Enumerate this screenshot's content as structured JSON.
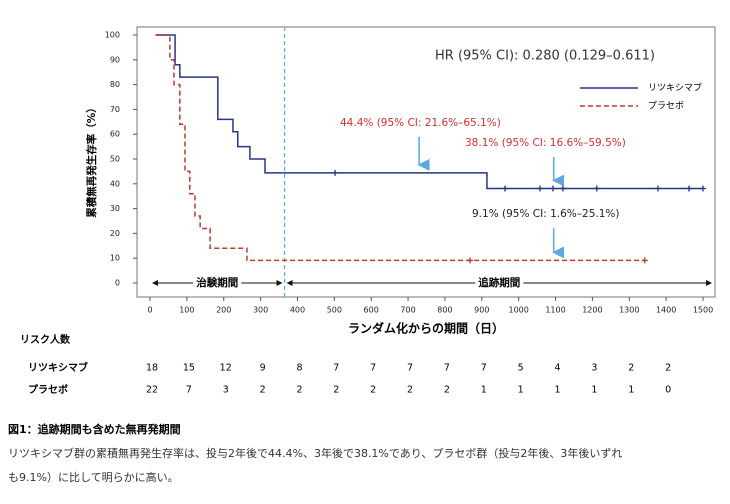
{
  "chart_data": {
    "type": "km",
    "y_label": "累積無再発生存率（%）",
    "x_label": "ランダム化からの期間（日）",
    "xlim": [
      0,
      1500
    ],
    "ylim": [
      0,
      100
    ],
    "xticks": [
      0,
      100,
      200,
      300,
      400,
      500,
      600,
      700,
      800,
      900,
      1000,
      1100,
      1200,
      1300,
      1400,
      1500
    ],
    "yticks": [
      0,
      10,
      20,
      30,
      40,
      50,
      60,
      70,
      80,
      90,
      100
    ],
    "hr_text": "HR (95% CI): 0.280 (0.129–0.611)",
    "vline": 365,
    "series": [
      {
        "name": "リツキシマブ",
        "color": "#26348b",
        "dash": false,
        "x": [
          15,
          68,
          81,
          184,
          225,
          238,
          271,
          312,
          914,
          1500
        ],
        "values": [
          100,
          88,
          83,
          66,
          61,
          55,
          50,
          44.4,
          38.1,
          38.1
        ],
        "censor_x": [
          502,
          963,
          1058,
          1093,
          1120,
          1212,
          1378,
          1462,
          1500
        ],
        "censor_values": [
          44.4,
          38.1,
          38.1,
          38.1,
          38.1,
          38.1,
          38.1,
          38.1,
          38.1
        ]
      },
      {
        "name": "プラセボ",
        "color": "#c0392b",
        "dash": true,
        "x": [
          15,
          54,
          65,
          81,
          95,
          108,
          122,
          136,
          163,
          263,
          1342
        ],
        "values": [
          100,
          90,
          80,
          64,
          45,
          36,
          27,
          22,
          14,
          9.1,
          9.1
        ],
        "censor_x": [
          868,
          1342
        ],
        "censor_values": [
          9.1,
          9.1
        ]
      }
    ],
    "annotations": [
      {
        "text": "44.4% (95% CI: 21.6%–65.1%)",
        "color": "#d0312d",
        "x": 730,
        "value": 44.4
      },
      {
        "text": "38.1% (95% CI: 16.6%–59.5%)",
        "color": "#d0312d",
        "x": 1095,
        "value": 38.1
      },
      {
        "text": "9.1% (95% CI: 1.6%–25.1%)",
        "color": "#222222",
        "x": 1095,
        "value": 9.1
      }
    ],
    "phases": [
      {
        "label": "治験期間",
        "start": 0,
        "end": 365
      },
      {
        "label": "追跡期間",
        "start": 365,
        "end": 1530
      }
    ]
  },
  "risk_table": {
    "title": "リスク人数",
    "rows": [
      {
        "name": "リツキシマブ",
        "values": [
          18,
          15,
          12,
          9,
          8,
          7,
          7,
          7,
          7,
          7,
          5,
          4,
          3,
          2,
          2
        ]
      },
      {
        "name": "プラセボ",
        "values": [
          22,
          7,
          3,
          2,
          2,
          2,
          2,
          2,
          2,
          1,
          1,
          1,
          1,
          1,
          0
        ]
      }
    ]
  },
  "caption": {
    "title": "図1：追跡期間も含めた無再発期間",
    "lines": [
      "リツキシマブ群の累積無再発生存率は、投与2年後で44.4%、3年後で38.1%であり、プラセボ群（投与2年後、3年後いずれ",
      "も9.1%）に比して明らかに高い。"
    ]
  }
}
